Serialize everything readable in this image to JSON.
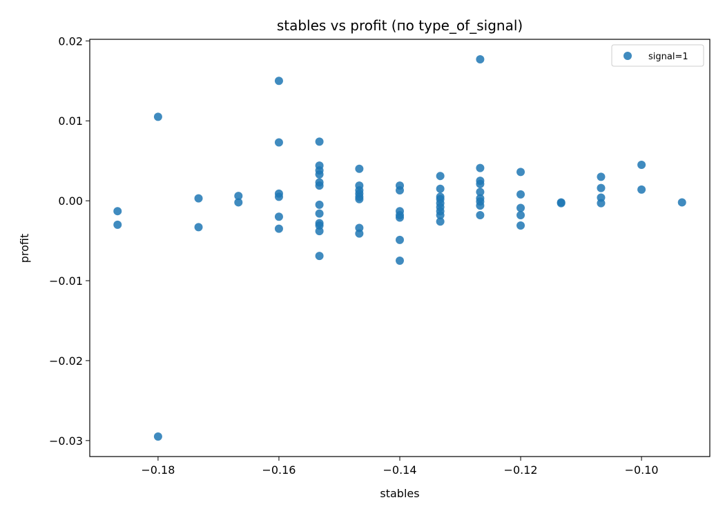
{
  "chart_data": {
    "type": "scatter",
    "title": "stables vs profit (по type_of_signal)",
    "xlabel": "stables",
    "ylabel": "profit",
    "xlim": [
      -0.1913,
      -0.0887
    ],
    "ylim": [
      -0.032,
      0.0202
    ],
    "xticks": [
      {
        "value": -0.18,
        "label": "−0.18"
      },
      {
        "value": -0.16,
        "label": "−0.16"
      },
      {
        "value": -0.14,
        "label": "−0.14"
      },
      {
        "value": -0.12,
        "label": "−0.12"
      },
      {
        "value": -0.1,
        "label": "−0.10"
      }
    ],
    "yticks": [
      {
        "value": 0.02,
        "label": "0.02"
      },
      {
        "value": 0.01,
        "label": "0.01"
      },
      {
        "value": 0.0,
        "label": "0.00"
      },
      {
        "value": -0.01,
        "label": "−0.01"
      },
      {
        "value": -0.02,
        "label": "−0.02"
      },
      {
        "value": -0.03,
        "label": "−0.03"
      }
    ],
    "grid": false,
    "legend_position": "top-right",
    "color": "#1f77b4",
    "series": [
      {
        "name": "signal=1",
        "points": [
          [
            -0.1867,
            -0.0013
          ],
          [
            -0.1867,
            -0.003
          ],
          [
            -0.18,
            0.0105
          ],
          [
            -0.18,
            -0.0295
          ],
          [
            -0.1733,
            0.0003
          ],
          [
            -0.1733,
            -0.0033
          ],
          [
            -0.1667,
            0.0006
          ],
          [
            -0.1667,
            -0.0002
          ],
          [
            -0.16,
            0.015
          ],
          [
            -0.16,
            0.0073
          ],
          [
            -0.16,
            0.0009
          ],
          [
            -0.16,
            0.0005
          ],
          [
            -0.16,
            -0.002
          ],
          [
            -0.16,
            -0.0035
          ],
          [
            -0.1533,
            0.0074
          ],
          [
            -0.1533,
            0.0044
          ],
          [
            -0.1533,
            0.0038
          ],
          [
            -0.1533,
            0.0033
          ],
          [
            -0.1533,
            0.0023
          ],
          [
            -0.1533,
            0.0019
          ],
          [
            -0.1533,
            -0.0005
          ],
          [
            -0.1533,
            -0.0016
          ],
          [
            -0.1533,
            -0.0028
          ],
          [
            -0.1533,
            -0.0031
          ],
          [
            -0.1533,
            -0.0038
          ],
          [
            -0.1533,
            -0.0069
          ],
          [
            -0.1467,
            0.004
          ],
          [
            -0.1467,
            0.0019
          ],
          [
            -0.1467,
            0.0013
          ],
          [
            -0.1467,
            0.0009
          ],
          [
            -0.1467,
            0.0005
          ],
          [
            -0.1467,
            0.0002
          ],
          [
            -0.1467,
            -0.0034
          ],
          [
            -0.1467,
            -0.0041
          ],
          [
            -0.14,
            0.0019
          ],
          [
            -0.14,
            0.0013
          ],
          [
            -0.14,
            -0.0013
          ],
          [
            -0.14,
            -0.0018
          ],
          [
            -0.14,
            -0.0021
          ],
          [
            -0.14,
            -0.0049
          ],
          [
            -0.14,
            -0.0075
          ],
          [
            -0.1333,
            0.0031
          ],
          [
            -0.1333,
            0.0015
          ],
          [
            -0.1333,
            0.0005
          ],
          [
            -0.1333,
            0.0002
          ],
          [
            -0.1333,
            -0.0003
          ],
          [
            -0.1333,
            -0.0008
          ],
          [
            -0.1333,
            -0.0013
          ],
          [
            -0.1333,
            -0.0018
          ],
          [
            -0.1333,
            -0.0026
          ],
          [
            -0.1267,
            0.0177
          ],
          [
            -0.1267,
            0.0041
          ],
          [
            -0.1267,
            0.0025
          ],
          [
            -0.1267,
            0.0021
          ],
          [
            -0.1267,
            0.0011
          ],
          [
            -0.1267,
            0.0003
          ],
          [
            -0.1267,
            -0.0001
          ],
          [
            -0.1267,
            -0.0006
          ],
          [
            -0.1267,
            -0.0018
          ],
          [
            -0.12,
            0.0036
          ],
          [
            -0.12,
            0.0008
          ],
          [
            -0.12,
            -0.0009
          ],
          [
            -0.12,
            -0.0018
          ],
          [
            -0.12,
            -0.0031
          ],
          [
            -0.1133,
            -0.0002
          ],
          [
            -0.1133,
            -0.0003
          ],
          [
            -0.1067,
            0.003
          ],
          [
            -0.1067,
            0.0016
          ],
          [
            -0.1067,
            0.0004
          ],
          [
            -0.1067,
            -0.0003
          ],
          [
            -0.1,
            0.0045
          ],
          [
            -0.1,
            0.0014
          ],
          [
            -0.0933,
            -0.0002
          ]
        ]
      }
    ]
  }
}
